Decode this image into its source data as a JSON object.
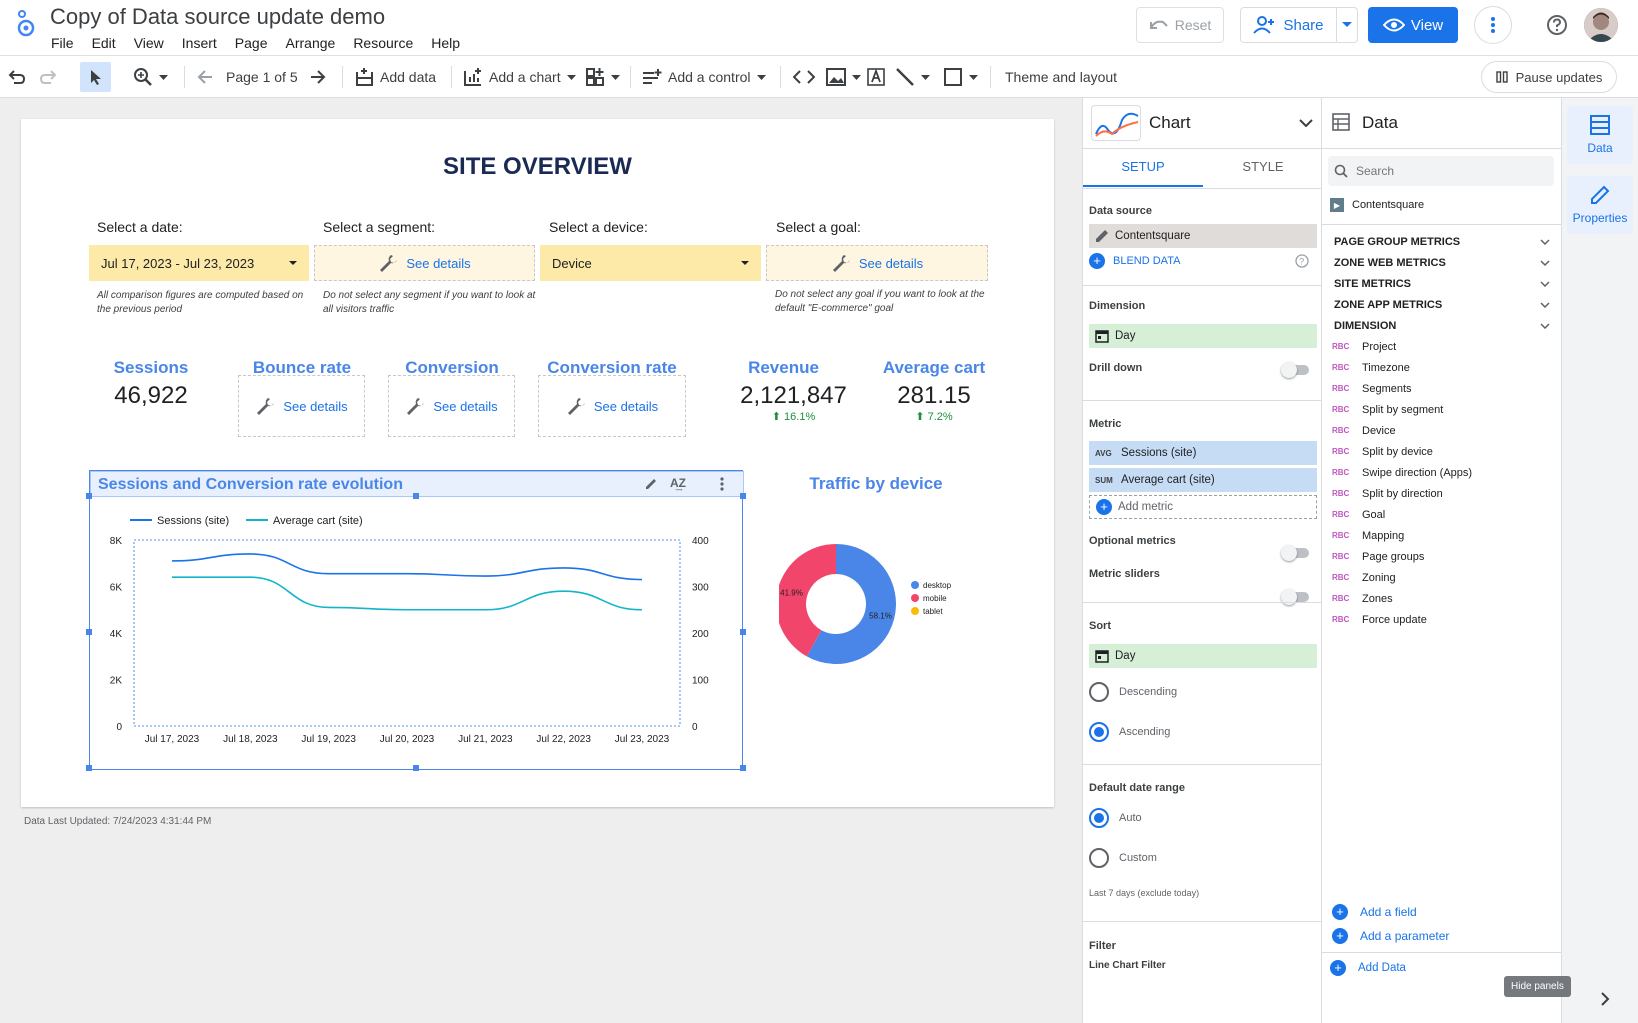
{
  "app": {
    "title": "Copy of Data source update demo",
    "menu": [
      "File",
      "Edit",
      "View",
      "Insert",
      "Page",
      "Arrange",
      "Resource",
      "Help"
    ],
    "reset_label": "Reset",
    "share_label": "Share",
    "view_label": "View"
  },
  "toolbar": {
    "page_label": "Page 1 of 5",
    "add_data": "Add data",
    "add_chart": "Add a chart",
    "add_control": "Add a control",
    "theme": "Theme and layout",
    "pause": "Pause updates"
  },
  "report": {
    "title": "SITE OVERVIEW",
    "filters": [
      {
        "label": "Select a date:",
        "value": "Jul 17, 2023 - Jul 23, 2023",
        "note": "All comparison figures are computed based on the previous period"
      },
      {
        "label": "Select a segment:",
        "value": "See details",
        "note": "Do not select any segment if you want to look at all visitors traffic"
      },
      {
        "label": "Select a device:",
        "value": "Device",
        "note": ""
      },
      {
        "label": "Select a goal:",
        "value": "See details",
        "note": "Do not select any goal if you want to look at the default \"E-commerce\" goal"
      }
    ],
    "kpis": [
      {
        "label": "Sessions",
        "value": "46,922",
        "delta": ""
      },
      {
        "label": "Bounce rate",
        "value": "See details",
        "delta": ""
      },
      {
        "label": "Conversion",
        "value": "See details",
        "delta": ""
      },
      {
        "label": "Conversion rate",
        "value": "See details",
        "delta": ""
      },
      {
        "label": "Revenue",
        "value": "2,121,847",
        "delta": "16.1%"
      },
      {
        "label": "Average cart",
        "value": "281.15",
        "delta": "7.2%"
      }
    ],
    "footer": "Data Last Updated: 7/24/2023 4:31:44 PM"
  },
  "colors": {
    "accent": "#1a73e8",
    "series1": "#1a73e8",
    "series2": "#12b5cb",
    "desktop": "#4a86e8",
    "mobile": "#f2456b",
    "tablet": "#fbbc04"
  },
  "chart_data": [
    {
      "type": "line",
      "title": "Sessions and Conversion rate evolution",
      "categories": [
        "Jul 17, 2023",
        "Jul 18, 2023",
        "Jul 19, 2023",
        "Jul 20, 2023",
        "Jul 21, 2023",
        "Jul 22, 2023",
        "Jul 23, 2023"
      ],
      "series": [
        {
          "name": "Sessions (site)",
          "axis": "left",
          "values": [
            7100,
            7400,
            6550,
            6550,
            6450,
            6800,
            6300
          ]
        },
        {
          "name": "Average cart (site)",
          "axis": "right",
          "values": [
            320,
            320,
            255,
            250,
            250,
            290,
            250
          ]
        }
      ],
      "ylim": [
        0,
        8000
      ],
      "yticks": [
        "0",
        "2K",
        "4K",
        "6K",
        "8K"
      ],
      "y2lim": [
        0,
        400
      ],
      "y2ticks": [
        "0",
        "100",
        "200",
        "300",
        "400"
      ],
      "legend": "top-left",
      "grid": false
    },
    {
      "type": "pie",
      "title": "Traffic by device",
      "categories": [
        "desktop",
        "mobile",
        "tablet"
      ],
      "values": [
        58.1,
        41.9,
        0
      ],
      "labels": [
        "58.1%",
        "41.9%",
        ""
      ],
      "legend": "right"
    }
  ],
  "chart_panel": {
    "title": "Chart",
    "tabs": [
      "SETUP",
      "STYLE"
    ],
    "data_source_label": "Data source",
    "data_source": "Contentsquare",
    "blend": "BLEND DATA",
    "dimension_label": "Dimension",
    "dimension": "Day",
    "drilldown": "Drill down",
    "metric_label": "Metric",
    "metrics": [
      {
        "agg": "AVG",
        "name": "Sessions (site)"
      },
      {
        "agg": "SUM",
        "name": "Average cart (site)"
      }
    ],
    "add_metric": "Add metric",
    "optional_metrics": "Optional metrics",
    "metric_sliders": "Metric sliders",
    "sort_label": "Sort",
    "sort": "Day",
    "descending": "Descending",
    "ascending": "Ascending",
    "date_range_label": "Default date range",
    "auto": "Auto",
    "custom": "Custom",
    "date_note": "Last 7 days (exclude today)",
    "filter_label": "Filter",
    "filter_sub": "Line Chart Filter"
  },
  "data_panel": {
    "title": "Data",
    "search_placeholder": "Search",
    "source": "Contentsquare",
    "groups": [
      "PAGE GROUP METRICS",
      "ZONE WEB METRICS",
      "SITE METRICS",
      "ZONE APP METRICS",
      "DIMENSION"
    ],
    "fields": [
      "Project",
      "Timezone",
      "Segments",
      "Split by segment",
      "Device",
      "Split by device",
      "Swipe direction (Apps)",
      "Split by direction",
      "Goal",
      "Mapping",
      "Page groups",
      "Zoning",
      "Zones",
      "Force update"
    ],
    "add_field": "Add a field",
    "add_parameter": "Add a parameter",
    "add_data": "Add Data",
    "hide_panels": "Hide panels"
  },
  "rail": {
    "data": "Data",
    "properties": "Properties"
  }
}
